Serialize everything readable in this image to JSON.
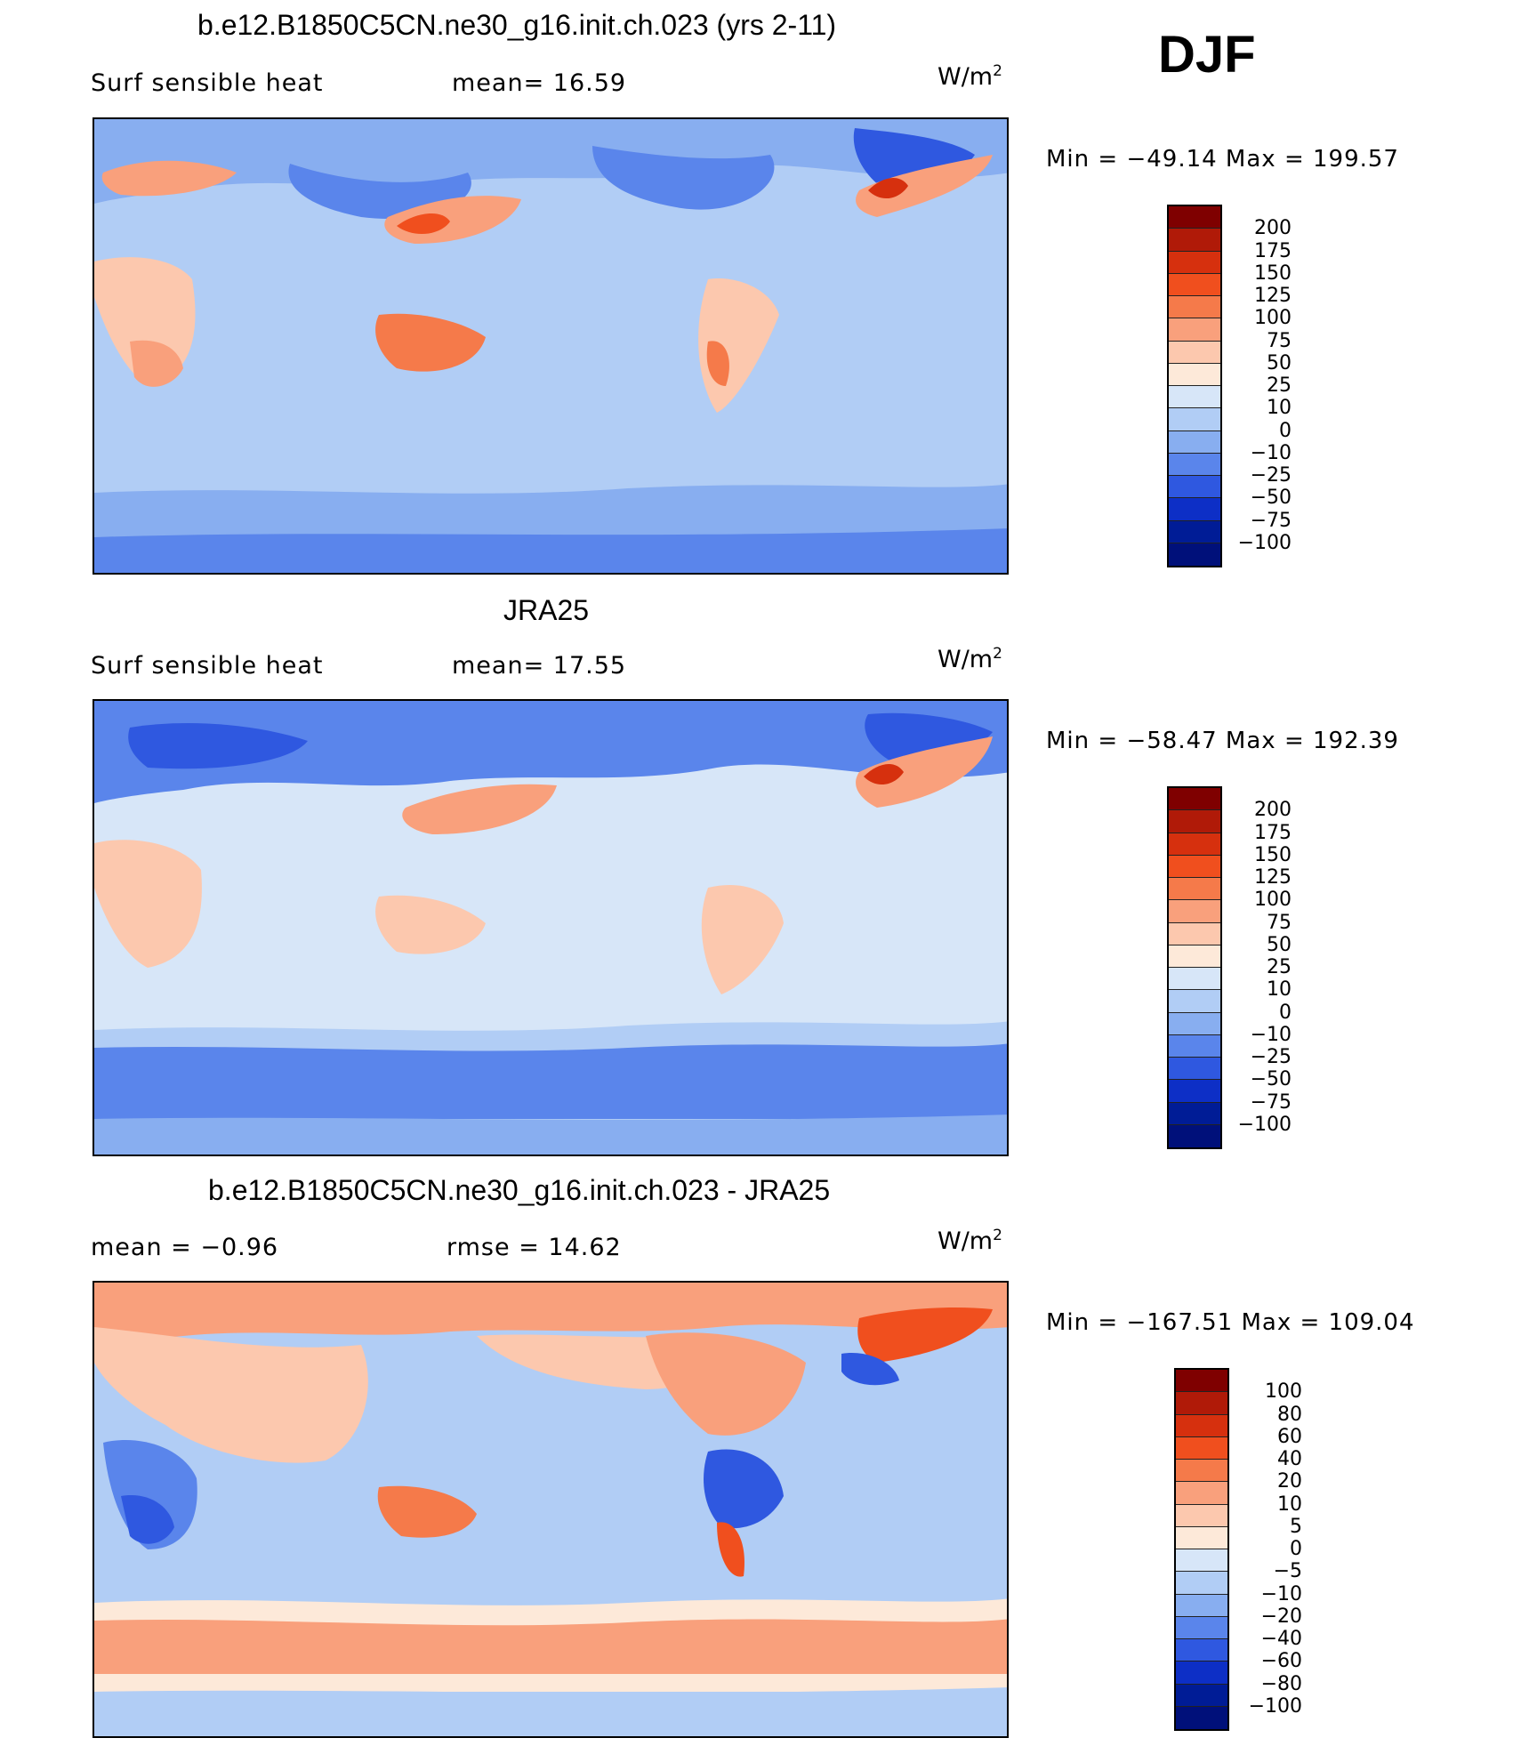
{
  "season": "DJF",
  "units_text": "W/m",
  "units_sup": "2",
  "panels": [
    {
      "title": "b.e12.B1850C5CN.ne30_g16.init.ch.023 (yrs 2-11)",
      "left_label": "Surf  sensible  heat",
      "right_label": "mean=   16.59",
      "minmax": "Min  =  −49.14  Max  =  199.57",
      "colorbar_labels": [
        "200",
        "175",
        "150",
        "125",
        "100",
        "75",
        "50",
        "25",
        "10",
        "0",
        "−10",
        "−25",
        "−50",
        "−75",
        "−100"
      ]
    },
    {
      "title": "JRA25",
      "left_label": "Surf  sensible  heat",
      "right_label": "mean=   17.55",
      "minmax": "Min  =  −58.47  Max  =  192.39",
      "colorbar_labels": [
        "200",
        "175",
        "150",
        "125",
        "100",
        "75",
        "50",
        "25",
        "10",
        "0",
        "−10",
        "−25",
        "−50",
        "−75",
        "−100"
      ]
    },
    {
      "title": "b.e12.B1850C5CN.ne30_g16.init.ch.023 - JRA25",
      "left_label": "mean  =    −0.96",
      "right_label": "rmse  =    14.62",
      "minmax": "Min  =  −167.51  Max  =  109.04",
      "colorbar_labels": [
        "100",
        "80",
        "60",
        "40",
        "20",
        "10",
        "5",
        "0",
        "−5",
        "−10",
        "−20",
        "−40",
        "−60",
        "−80",
        "−100"
      ]
    }
  ],
  "colorbar_colors": [
    "#7f0000",
    "#b01a08",
    "#d6300e",
    "#f04f1e",
    "#f57a4a",
    "#f9a07c",
    "#fcc8ae",
    "#fde9d9",
    "#d7e6f8",
    "#b1cdf5",
    "#88aef0",
    "#5a85eb",
    "#2f58e0",
    "#0d2fc6",
    "#001c96",
    "#00107a"
  ]
}
